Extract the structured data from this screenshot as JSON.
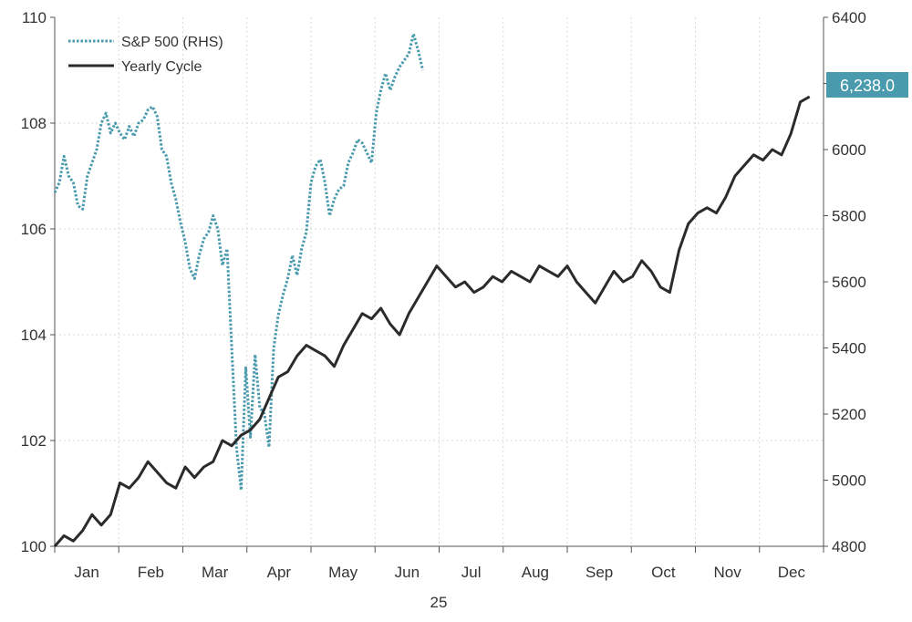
{
  "chart_data": {
    "type": "line",
    "x_labels": [
      "Jan",
      "Feb",
      "Mar",
      "Apr",
      "May",
      "Jun",
      "Jul",
      "Aug",
      "Sep",
      "Oct",
      "Nov",
      "Dec"
    ],
    "x_axis_caption": "25",
    "y_left": {
      "range": [
        100,
        110
      ],
      "ticks": [
        "100",
        "102",
        "104",
        "106",
        "108",
        "110"
      ]
    },
    "y_right": {
      "range": [
        4800,
        6400
      ],
      "ticks": [
        "4800",
        "5000",
        "5200",
        "5400",
        "5600",
        "5800",
        "6000",
        "6200",
        "6400"
      ]
    },
    "grid": true,
    "legend_position": "top-left",
    "last_value_label": "6,238.0",
    "colors": {
      "sp500": "#4a9aae",
      "yearly": "#2b2b2b",
      "badge": "#4a9aae",
      "grid": "#d9d9d9"
    },
    "series": [
      {
        "name": "S&P 500 (RHS)",
        "axis": "right",
        "style": "dotted",
        "points": [
          [
            0.0,
            5870
          ],
          [
            0.2,
            5900
          ],
          [
            0.4,
            5980
          ],
          [
            0.6,
            5920
          ],
          [
            0.8,
            5900
          ],
          [
            1.0,
            5830
          ],
          [
            1.2,
            5820
          ],
          [
            1.4,
            5920
          ],
          [
            1.6,
            5960
          ],
          [
            1.8,
            6000
          ],
          [
            2.0,
            6080
          ],
          [
            2.2,
            6110
          ],
          [
            2.4,
            6050
          ],
          [
            2.6,
            6080
          ],
          [
            2.8,
            6050
          ],
          [
            3.0,
            6030
          ],
          [
            3.2,
            6070
          ],
          [
            3.4,
            6040
          ],
          [
            3.6,
            6080
          ],
          [
            3.8,
            6090
          ],
          [
            4.0,
            6120
          ],
          [
            4.2,
            6130
          ],
          [
            4.4,
            6100
          ],
          [
            4.6,
            6000
          ],
          [
            4.8,
            5980
          ],
          [
            5.0,
            5900
          ],
          [
            5.2,
            5850
          ],
          [
            5.4,
            5780
          ],
          [
            5.6,
            5720
          ],
          [
            5.8,
            5640
          ],
          [
            6.0,
            5610
          ],
          [
            6.2,
            5680
          ],
          [
            6.4,
            5730
          ],
          [
            6.6,
            5750
          ],
          [
            6.8,
            5800
          ],
          [
            7.0,
            5760
          ],
          [
            7.2,
            5650
          ],
          [
            7.4,
            5700
          ],
          [
            7.6,
            5400
          ],
          [
            7.8,
            5100
          ],
          [
            8.0,
            4970
          ],
          [
            8.2,
            5340
          ],
          [
            8.4,
            5130
          ],
          [
            8.6,
            5380
          ],
          [
            8.8,
            5220
          ],
          [
            9.0,
            5200
          ],
          [
            9.2,
            5100
          ],
          [
            9.4,
            5400
          ],
          [
            9.6,
            5500
          ],
          [
            9.8,
            5560
          ],
          [
            10.0,
            5610
          ],
          [
            10.2,
            5680
          ],
          [
            10.4,
            5620
          ],
          [
            10.6,
            5700
          ],
          [
            10.8,
            5750
          ],
          [
            11.0,
            5900
          ],
          [
            11.2,
            5950
          ],
          [
            11.4,
            5970
          ],
          [
            11.6,
            5900
          ],
          [
            11.8,
            5800
          ],
          [
            12.0,
            5850
          ],
          [
            12.2,
            5880
          ],
          [
            12.4,
            5890
          ],
          [
            12.6,
            5960
          ],
          [
            12.8,
            5990
          ],
          [
            13.0,
            6030
          ],
          [
            13.2,
            6020
          ],
          [
            13.4,
            5990
          ],
          [
            13.6,
            5960
          ],
          [
            13.8,
            6110
          ],
          [
            14.0,
            6180
          ],
          [
            14.2,
            6230
          ],
          [
            14.4,
            6180
          ],
          [
            14.6,
            6220
          ],
          [
            14.8,
            6250
          ],
          [
            15.0,
            6270
          ],
          [
            15.2,
            6290
          ],
          [
            15.4,
            6350
          ],
          [
            15.6,
            6300
          ],
          [
            15.8,
            6240
          ]
        ]
      },
      {
        "name": "Yearly Cycle",
        "axis": "left",
        "style": "solid",
        "points": [
          [
            0.0,
            100.0
          ],
          [
            0.4,
            100.2
          ],
          [
            0.8,
            100.1
          ],
          [
            1.2,
            100.3
          ],
          [
            1.6,
            100.6
          ],
          [
            2.0,
            100.4
          ],
          [
            2.4,
            100.6
          ],
          [
            2.8,
            101.2
          ],
          [
            3.2,
            101.1
          ],
          [
            3.6,
            101.3
          ],
          [
            4.0,
            101.6
          ],
          [
            4.4,
            101.4
          ],
          [
            4.8,
            101.2
          ],
          [
            5.2,
            101.1
          ],
          [
            5.6,
            101.5
          ],
          [
            6.0,
            101.3
          ],
          [
            6.4,
            101.5
          ],
          [
            6.8,
            101.6
          ],
          [
            7.2,
            102.0
          ],
          [
            7.6,
            101.9
          ],
          [
            8.0,
            102.1
          ],
          [
            8.4,
            102.2
          ],
          [
            8.8,
            102.4
          ],
          [
            9.2,
            102.8
          ],
          [
            9.6,
            103.2
          ],
          [
            10.0,
            103.3
          ],
          [
            10.4,
            103.6
          ],
          [
            10.8,
            103.8
          ],
          [
            11.2,
            103.7
          ],
          [
            11.6,
            103.6
          ],
          [
            12.0,
            103.4
          ],
          [
            12.4,
            103.8
          ],
          [
            12.8,
            104.1
          ],
          [
            13.2,
            104.4
          ],
          [
            13.6,
            104.3
          ],
          [
            14.0,
            104.5
          ],
          [
            14.4,
            104.2
          ],
          [
            14.8,
            104.0
          ],
          [
            15.2,
            104.4
          ],
          [
            15.6,
            104.7
          ],
          [
            16.0,
            105.0
          ],
          [
            16.4,
            105.3
          ],
          [
            16.8,
            105.1
          ],
          [
            17.2,
            104.9
          ],
          [
            17.6,
            105.0
          ],
          [
            18.0,
            104.8
          ],
          [
            18.4,
            104.9
          ],
          [
            18.8,
            105.1
          ],
          [
            19.2,
            105.0
          ],
          [
            19.6,
            105.2
          ],
          [
            20.0,
            105.1
          ],
          [
            20.4,
            105.0
          ],
          [
            20.8,
            105.3
          ],
          [
            21.2,
            105.2
          ],
          [
            21.6,
            105.1
          ],
          [
            22.0,
            105.3
          ],
          [
            22.4,
            105.0
          ],
          [
            22.8,
            104.8
          ],
          [
            23.2,
            104.6
          ],
          [
            23.6,
            104.9
          ],
          [
            24.0,
            105.2
          ],
          [
            24.4,
            105.0
          ],
          [
            24.8,
            105.1
          ],
          [
            25.2,
            105.4
          ],
          [
            25.6,
            105.2
          ],
          [
            26.0,
            104.9
          ],
          [
            26.4,
            104.8
          ],
          [
            26.8,
            105.6
          ],
          [
            27.2,
            106.1
          ],
          [
            27.6,
            106.3
          ],
          [
            28.0,
            106.4
          ],
          [
            28.4,
            106.3
          ],
          [
            28.8,
            106.6
          ],
          [
            29.2,
            107.0
          ],
          [
            29.6,
            107.2
          ],
          [
            30.0,
            107.4
          ],
          [
            30.4,
            107.3
          ],
          [
            30.8,
            107.5
          ],
          [
            31.2,
            107.4
          ],
          [
            31.6,
            107.8
          ],
          [
            32.0,
            108.4
          ],
          [
            32.4,
            108.5
          ]
        ]
      }
    ]
  }
}
